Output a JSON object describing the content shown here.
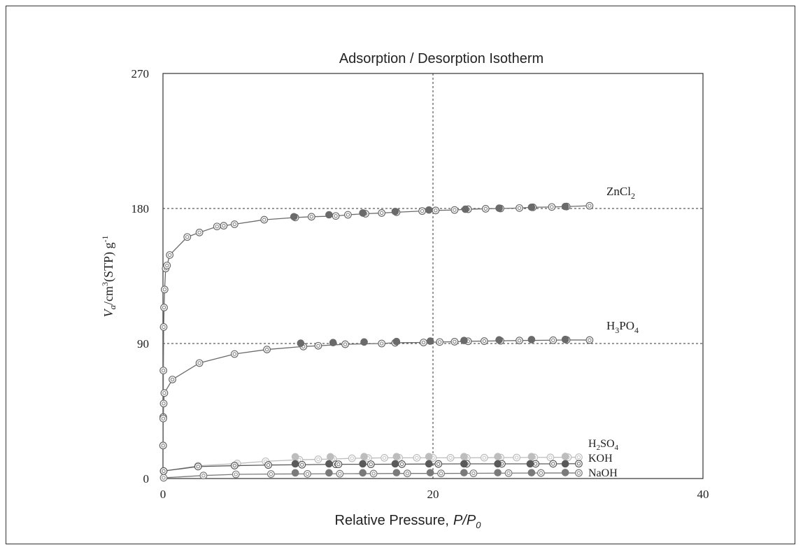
{
  "chart_data": {
    "type": "scatter",
    "title": "Adsorption / Desorption Isotherm",
    "xlabel_main": "Relative Pressure,",
    "xlabel_var": "P/P",
    "xlabel_sub": "0",
    "ylabel_v": "V",
    "ylabel_a": "a",
    "ylabel_unit1": "/cm",
    "ylabel_sup3": "3",
    "ylabel_unit2": "(STP) g",
    "ylabel_sup": "-1",
    "xlim": [
      0,
      40
    ],
    "ylim": [
      0,
      270
    ],
    "x_ticks": [
      "0",
      "20",
      "40"
    ],
    "y_ticks": [
      "0",
      "90",
      "180",
      "270"
    ],
    "reference_lines": {
      "x": 20,
      "y": [
        90,
        180
      ]
    },
    "series": [
      {
        "name": "ZnCl2",
        "label_main": "ZnCl",
        "label_sub": "2",
        "color": "#6a6a6a",
        "adsorption": [
          [
            0.01,
            22
          ],
          [
            0.02,
            41
          ],
          [
            0.03,
            72
          ],
          [
            0.05,
            101
          ],
          [
            0.08,
            114
          ],
          [
            0.12,
            126
          ],
          [
            0.2,
            140
          ],
          [
            0.3,
            142
          ],
          [
            0.5,
            149
          ],
          [
            1.8,
            161
          ],
          [
            2.7,
            164
          ],
          [
            4,
            168
          ],
          [
            4.5,
            168.5
          ],
          [
            5.3,
            169.5
          ],
          [
            7.5,
            172.5
          ],
          [
            9.8,
            174
          ],
          [
            11,
            174.5
          ],
          [
            12.8,
            175
          ],
          [
            13.7,
            175.8
          ],
          [
            15,
            176.5
          ],
          [
            16.2,
            177
          ],
          [
            17.3,
            177.5
          ],
          [
            19.2,
            178.3
          ],
          [
            20.2,
            178.7
          ],
          [
            21.6,
            179
          ],
          [
            22.6,
            179.5
          ],
          [
            23.9,
            179.8
          ],
          [
            25,
            180
          ],
          [
            26.4,
            180.3
          ],
          [
            27.4,
            180.8
          ],
          [
            28.8,
            181
          ],
          [
            29.9,
            181.3
          ],
          [
            31.6,
            181.8
          ]
        ],
        "desorption": [
          [
            9.7,
            174.5
          ],
          [
            12.3,
            175.8
          ],
          [
            14.8,
            177
          ],
          [
            17.2,
            178
          ],
          [
            19.7,
            179
          ],
          [
            22.4,
            179.5
          ],
          [
            24.9,
            180.2
          ],
          [
            27.3,
            180.8
          ],
          [
            29.8,
            181.3
          ]
        ]
      },
      {
        "name": "H3PO4",
        "label_pre": "H",
        "label_sub1": "3",
        "label_mid": "PO",
        "label_sub2": "4",
        "color": "#6a6a6a",
        "adsorption": [
          [
            0.01,
            22
          ],
          [
            0.02,
            40
          ],
          [
            0.05,
            50
          ],
          [
            0.1,
            57
          ],
          [
            0.7,
            66
          ],
          [
            2.7,
            77
          ],
          [
            5.3,
            83
          ],
          [
            7.7,
            86
          ],
          [
            10.4,
            88
          ],
          [
            11.5,
            88.5
          ],
          [
            13.5,
            89.5
          ],
          [
            16.2,
            90
          ],
          [
            17.2,
            90.5
          ],
          [
            19.3,
            90.7
          ],
          [
            20.5,
            91
          ],
          [
            21.6,
            91.2
          ],
          [
            22.6,
            91.5
          ],
          [
            23.8,
            91.6
          ],
          [
            25,
            91.8
          ],
          [
            26.4,
            92
          ],
          [
            28.9,
            92.2
          ],
          [
            29.9,
            92.4
          ],
          [
            31.6,
            92.3
          ]
        ],
        "desorption": [
          [
            10.2,
            90.2
          ],
          [
            12.6,
            90.6
          ],
          [
            14.9,
            91
          ],
          [
            17.3,
            91.3
          ],
          [
            19.8,
            91.6
          ],
          [
            22.3,
            92
          ],
          [
            24.9,
            92.4
          ],
          [
            27.3,
            92.6
          ],
          [
            29.8,
            92.7
          ]
        ]
      },
      {
        "name": "H2SO4",
        "label_pre": "H",
        "label_sub": "2",
        "label_post": "SO",
        "label_sub2": "4",
        "color": "#bdbdbd",
        "adsorption": [
          [
            0.05,
            5
          ],
          [
            2.6,
            8.5
          ],
          [
            5.5,
            10
          ],
          [
            7.6,
            11.5
          ],
          [
            10.1,
            12.5
          ],
          [
            11.5,
            12.8
          ],
          [
            12.6,
            13
          ],
          [
            14,
            13.5
          ],
          [
            15.2,
            13.6
          ],
          [
            16.4,
            13.8
          ],
          [
            17.5,
            13.8
          ],
          [
            18.8,
            13.8
          ],
          [
            20,
            13.8
          ],
          [
            21.3,
            13.8
          ],
          [
            22.5,
            13.8
          ],
          [
            23.8,
            13.9
          ],
          [
            25,
            14
          ],
          [
            26.2,
            14
          ],
          [
            27.5,
            14.1
          ],
          [
            28.7,
            14.1
          ],
          [
            30,
            14.2
          ],
          [
            30.8,
            14.2
          ]
        ],
        "desorption": [
          [
            9.8,
            14.5
          ],
          [
            12.4,
            14.5
          ],
          [
            14.9,
            14.6
          ],
          [
            17.3,
            14.6
          ],
          [
            19.7,
            14.6
          ],
          [
            22.3,
            14.6
          ],
          [
            24.8,
            14.6
          ],
          [
            27.3,
            14.6
          ],
          [
            29.8,
            14.7
          ]
        ]
      },
      {
        "name": "KOH",
        "label": "KOH",
        "color": "#5a5a5a",
        "adsorption": [
          [
            0.05,
            5
          ],
          [
            2.6,
            8
          ],
          [
            5.3,
            8.6
          ],
          [
            7.8,
            9
          ],
          [
            10.3,
            9.2
          ],
          [
            12.8,
            9.5
          ],
          [
            13,
            9.5
          ],
          [
            15.4,
            9.5
          ],
          [
            17.7,
            9.6
          ],
          [
            20.4,
            9.7
          ],
          [
            22.5,
            9.8
          ],
          [
            25.1,
            9.8
          ],
          [
            27.6,
            9.8
          ],
          [
            28.9,
            9.8
          ],
          [
            30.8,
            9.9
          ]
        ],
        "desorption": [
          [
            9.8,
            9.8
          ],
          [
            12.3,
            9.8
          ],
          [
            14.8,
            9.8
          ],
          [
            17.2,
            9.8
          ],
          [
            19.7,
            9.8
          ],
          [
            22.3,
            9.8
          ],
          [
            24.8,
            9.8
          ],
          [
            27.2,
            9.8
          ],
          [
            29.8,
            9.8
          ]
        ]
      },
      {
        "name": "NaOH",
        "label": "NaOH",
        "color": "#7a7a7a",
        "adsorption": [
          [
            0.05,
            0.5
          ],
          [
            3,
            2
          ],
          [
            5.4,
            2.8
          ],
          [
            8,
            3
          ],
          [
            10.7,
            3.1
          ],
          [
            13.1,
            3.2
          ],
          [
            15.6,
            3.3
          ],
          [
            18.1,
            3.4
          ],
          [
            20.6,
            3.4
          ],
          [
            23,
            3.5
          ],
          [
            25.6,
            3.6
          ],
          [
            28,
            3.7
          ],
          [
            30.8,
            3.7
          ]
        ],
        "desorption": [
          [
            9.8,
            3.8
          ],
          [
            12.3,
            3.8
          ],
          [
            14.8,
            3.8
          ],
          [
            17.3,
            3.9
          ],
          [
            19.8,
            3.9
          ],
          [
            22.3,
            3.9
          ],
          [
            24.8,
            3.9
          ],
          [
            27.3,
            3.9
          ],
          [
            29.8,
            4
          ]
        ]
      }
    ]
  }
}
